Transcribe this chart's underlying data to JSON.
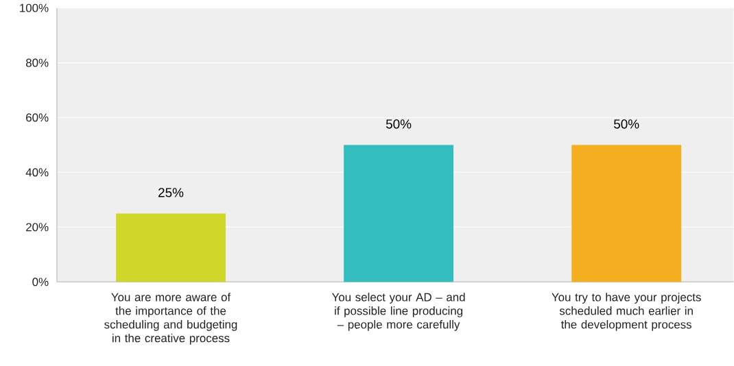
{
  "chart_data": {
    "type": "bar",
    "categories": [
      "You are more aware of the importance of the scheduling and budgeting in the creative process",
      "You select your AD – and if possible line producing – people more carefully",
      "You try to have your projects scheduled much earlier in the development process"
    ],
    "values": [
      25,
      50,
      50
    ],
    "colors": [
      "#d0d62a",
      "#33bdbf",
      "#f5ae1f"
    ],
    "value_labels": [
      "25%",
      "50%",
      "50%"
    ],
    "ylim": [
      0,
      100
    ],
    "yticks": [
      {
        "value": 0,
        "label": "0%"
      },
      {
        "value": 20,
        "label": "20%"
      },
      {
        "value": 40,
        "label": "40%"
      },
      {
        "value": 60,
        "label": "60%"
      },
      {
        "value": 80,
        "label": "80%"
      },
      {
        "value": 100,
        "label": "100%"
      }
    ],
    "grid": "y"
  }
}
